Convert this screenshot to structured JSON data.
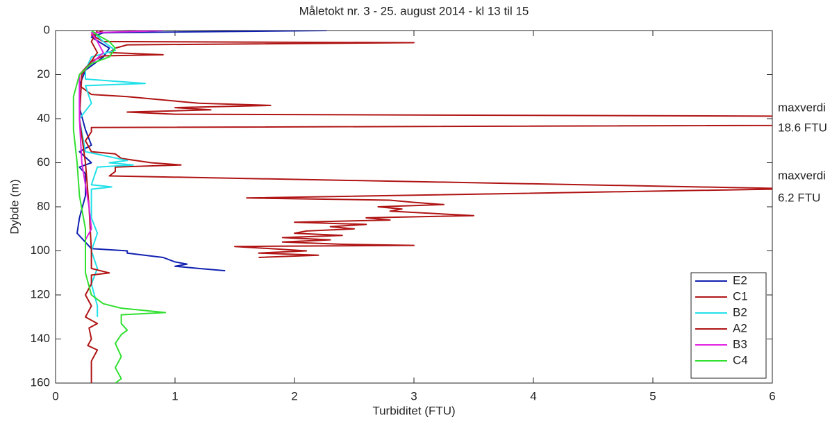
{
  "chart_data": {
    "type": "line",
    "title": "Måletokt nr. 3 - 25. august 2014 - kl 13 til 15",
    "x_label": "Turbiditet (FTU)",
    "y_label": "Dybde (m)",
    "xlim": [
      0,
      6
    ],
    "xticks": [
      0,
      1,
      2,
      3,
      4,
      5,
      6
    ],
    "ylim": [
      0,
      160
    ],
    "yticks": [
      0,
      20,
      40,
      60,
      80,
      100,
      120,
      140,
      160
    ],
    "y_reversed": true,
    "legend": "lower right",
    "annotations": [
      "maxverdi",
      "18.6 FTU",
      "maxverdi",
      "6.2 FTU"
    ],
    "series": [
      {
        "name": "E2",
        "color": "#1020b0",
        "depths": [
          0,
          1,
          3,
          8,
          12,
          18,
          25,
          35,
          45,
          52,
          55,
          60,
          62,
          65,
          75,
          85,
          92,
          99,
          100,
          101,
          103,
          105,
          106,
          107,
          108,
          109
        ],
        "values": [
          2.27,
          0.4,
          0.3,
          0.45,
          0.4,
          0.25,
          0.2,
          0.2,
          0.25,
          0.3,
          0.2,
          0.3,
          0.2,
          0.25,
          0.25,
          0.2,
          0.18,
          0.3,
          0.6,
          0.6,
          0.9,
          1.0,
          1.1,
          1.0,
          1.2,
          1.42
        ]
      },
      {
        "name": "C1",
        "color": "#b01414",
        "depths": [
          0,
          2,
          5,
          5.5,
          6.5,
          8,
          10,
          11,
          11.5,
          14,
          20,
          25,
          29,
          30,
          33,
          34,
          35,
          36,
          37,
          38,
          41,
          44,
          46,
          50,
          55,
          56,
          58,
          60,
          61,
          62,
          64,
          66,
          71.8,
          76,
          77,
          78,
          79,
          80,
          81,
          82,
          84,
          85,
          86,
          87,
          88,
          89,
          90,
          91,
          92,
          93,
          94,
          95,
          96,
          97,
          97.5,
          98,
          99,
          100,
          101,
          102,
          103
        ],
        "values": [
          0.4,
          0.3,
          0.4,
          3.0,
          0.6,
          0.5,
          0.45,
          0.9,
          0.4,
          0.3,
          0.2,
          0.2,
          0.3,
          0.6,
          1.2,
          1.8,
          1.0,
          1.3,
          0.6,
          1.0,
          18.6,
          0.3,
          0.3,
          0.25,
          0.3,
          0.5,
          0.55,
          0.8,
          1.05,
          0.5,
          0.5,
          0.45,
          6.2,
          1.6,
          2.8,
          3.0,
          3.25,
          2.7,
          2.9,
          2.8,
          3.5,
          2.6,
          2.8,
          2.0,
          2.6,
          2.3,
          2.5,
          2.1,
          2.0,
          2.4,
          1.9,
          2.3,
          1.9,
          2.4,
          3.0,
          1.5,
          1.8,
          2.1,
          1.7,
          2.2,
          1.7
        ]
      },
      {
        "name": "B2",
        "color": "#20e0e8",
        "depths": [
          0,
          5,
          9,
          12,
          18,
          22,
          24,
          25,
          33,
          40,
          55,
          59,
          60,
          61,
          62,
          70,
          71,
          72,
          85,
          92,
          100,
          108,
          115,
          125,
          130
        ],
        "values": [
          0.3,
          0.4,
          0.5,
          0.3,
          0.25,
          0.25,
          0.75,
          0.25,
          0.3,
          0.2,
          0.25,
          0.6,
          0.45,
          0.65,
          0.35,
          0.3,
          0.47,
          0.3,
          0.3,
          0.35,
          0.3,
          0.35,
          0.3,
          0.35,
          0.35
        ]
      },
      {
        "name": "A2",
        "color": "#b01414",
        "depths": [
          0,
          5,
          10,
          20,
          40,
          60,
          80,
          100,
          105,
          108,
          110,
          111,
          115,
          120,
          125,
          130,
          133,
          135,
          140,
          143,
          145,
          150,
          155,
          160
        ],
        "values": [
          0.35,
          0.3,
          0.35,
          0.22,
          0.2,
          0.25,
          0.28,
          0.3,
          0.3,
          0.3,
          0.45,
          0.3,
          0.3,
          0.25,
          0.3,
          0.25,
          0.35,
          0.28,
          0.3,
          0.27,
          0.35,
          0.3,
          0.3,
          0.3
        ]
      },
      {
        "name": "B3",
        "color": "#e020e0",
        "depths": [
          0,
          1,
          5,
          10,
          20,
          40,
          60,
          70,
          80,
          90,
          95
        ],
        "values": [
          0.9,
          0.3,
          0.35,
          0.4,
          0.2,
          0.2,
          0.22,
          0.25,
          0.28,
          0.3,
          0.25
        ]
      },
      {
        "name": "C4",
        "color": "#30e030",
        "depths": [
          0,
          2,
          5,
          8,
          12,
          15,
          20,
          30,
          45,
          60,
          75,
          90,
          100,
          110,
          120,
          124,
          126,
          128,
          129,
          133,
          136,
          138,
          142,
          148,
          153,
          158,
          160
        ],
        "values": [
          0.3,
          0.35,
          0.45,
          0.5,
          0.45,
          0.3,
          0.2,
          0.15,
          0.15,
          0.18,
          0.2,
          0.25,
          0.25,
          0.25,
          0.3,
          0.4,
          0.55,
          0.92,
          0.55,
          0.55,
          0.6,
          0.55,
          0.5,
          0.55,
          0.5,
          0.55,
          0.5
        ]
      }
    ]
  }
}
